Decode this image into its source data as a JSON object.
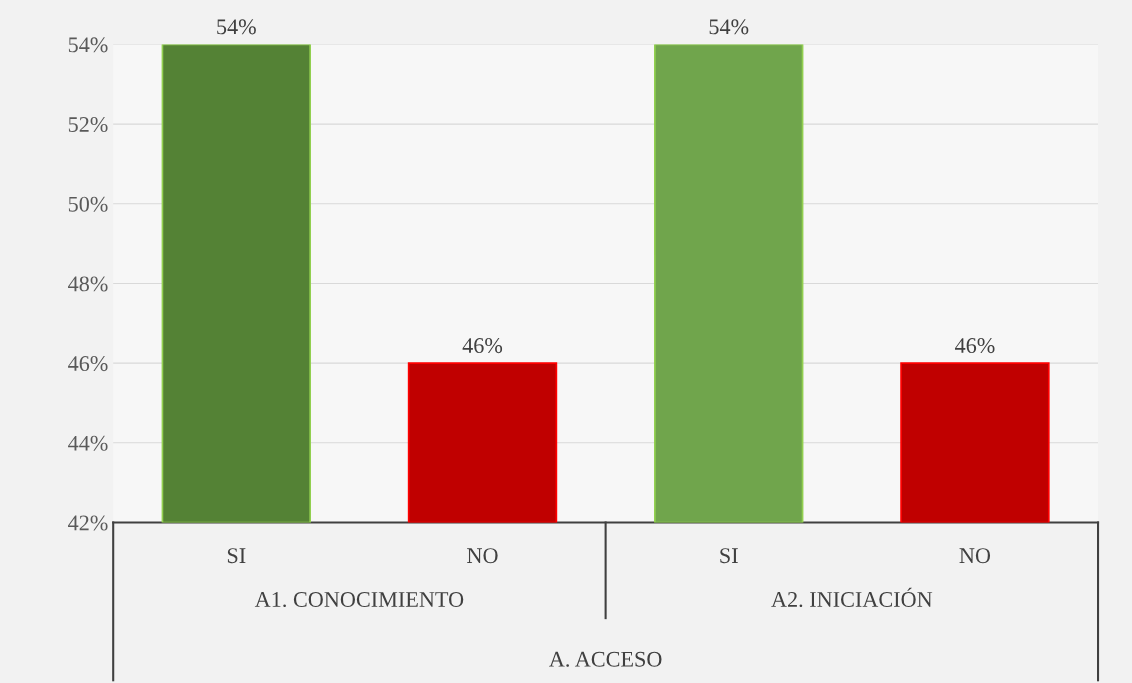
{
  "chart_data": {
    "type": "bar",
    "categories": [
      "SI",
      "NO",
      "SI",
      "NO"
    ],
    "values": [
      54,
      46,
      54,
      46
    ],
    "colors": [
      "#548235",
      "#c00000",
      "#70a54c",
      "#c00000"
    ],
    "value_labels": [
      "54%",
      "46%",
      "54%",
      "46%"
    ],
    "ylim": [
      42,
      54
    ],
    "yticks": [
      {
        "value": 42,
        "label": "42%"
      },
      {
        "value": 44,
        "label": "44%"
      },
      {
        "value": 46,
        "label": "46%"
      },
      {
        "value": 48,
        "label": "48%"
      },
      {
        "value": 50,
        "label": "50%"
      },
      {
        "value": 52,
        "label": "52%"
      },
      {
        "value": 54,
        "label": "54%"
      }
    ],
    "grid": "y",
    "annotations": [
      "A1. CONOCIMIENTO",
      "A2. INICIACIÓN",
      "A. ACCESO"
    ]
  }
}
